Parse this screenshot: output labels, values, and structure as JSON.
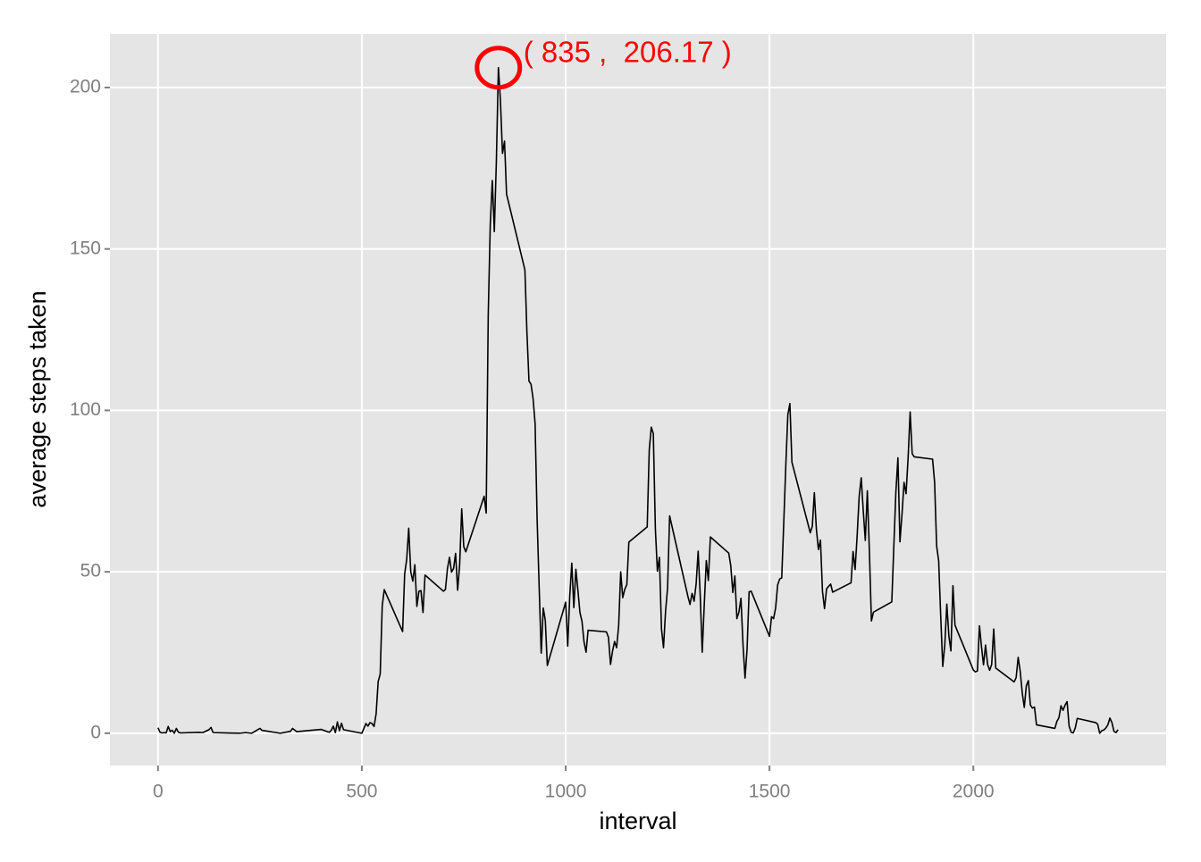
{
  "chart_data": {
    "type": "line",
    "x_label": "interval",
    "y_label": "average steps taken",
    "x": [
      0,
      5,
      10,
      15,
      20,
      25,
      30,
      35,
      40,
      45,
      50,
      55,
      100,
      110,
      125,
      130,
      135,
      200,
      215,
      230,
      250,
      255,
      300,
      325,
      330,
      340,
      400,
      415,
      420,
      425,
      430,
      435,
      440,
      445,
      450,
      455,
      500,
      505,
      510,
      515,
      520,
      525,
      530,
      535,
      540,
      545,
      550,
      555,
      600,
      605,
      610,
      615,
      620,
      625,
      630,
      635,
      640,
      645,
      650,
      655,
      700,
      705,
      710,
      715,
      720,
      725,
      730,
      735,
      740,
      745,
      750,
      755,
      800,
      805,
      810,
      815,
      820,
      825,
      830,
      835,
      840,
      845,
      850,
      855,
      900,
      905,
      910,
      915,
      920,
      925,
      930,
      935,
      940,
      945,
      950,
      955,
      1000,
      1005,
      1010,
      1015,
      1020,
      1025,
      1030,
      1035,
      1040,
      1045,
      1050,
      1055,
      1100,
      1105,
      1110,
      1115,
      1120,
      1125,
      1130,
      1135,
      1140,
      1145,
      1150,
      1155,
      1200,
      1205,
      1210,
      1215,
      1220,
      1225,
      1230,
      1235,
      1240,
      1245,
      1250,
      1255,
      1300,
      1305,
      1310,
      1315,
      1320,
      1325,
      1330,
      1335,
      1340,
      1345,
      1350,
      1355,
      1400,
      1405,
      1410,
      1415,
      1420,
      1425,
      1430,
      1435,
      1440,
      1445,
      1450,
      1455,
      1500,
      1505,
      1510,
      1515,
      1520,
      1525,
      1530,
      1535,
      1540,
      1545,
      1550,
      1555,
      1600,
      1605,
      1610,
      1615,
      1620,
      1625,
      1630,
      1635,
      1640,
      1645,
      1650,
      1655,
      1700,
      1705,
      1710,
      1715,
      1720,
      1725,
      1730,
      1735,
      1740,
      1745,
      1750,
      1755,
      1800,
      1805,
      1810,
      1815,
      1820,
      1825,
      1830,
      1835,
      1840,
      1845,
      1850,
      1855,
      1900,
      1905,
      1910,
      1915,
      1920,
      1925,
      1930,
      1935,
      1940,
      1945,
      1950,
      1955,
      2000,
      2005,
      2010,
      2015,
      2020,
      2025,
      2030,
      2035,
      2040,
      2045,
      2050,
      2055,
      2100,
      2105,
      2110,
      2115,
      2120,
      2125,
      2130,
      2135,
      2140,
      2145,
      2150,
      2155,
      2200,
      2205,
      2210,
      2215,
      2220,
      2225,
      2230,
      2235,
      2240,
      2245,
      2250,
      2255,
      2300,
      2305,
      2310,
      2315,
      2320,
      2325,
      2330,
      2335,
      2340,
      2345,
      2350,
      2355
    ],
    "series": [
      {
        "color": "#000000",
        "values": [
          1.7,
          0.3,
          0.1,
          0.2,
          0.1,
          2.1,
          0.5,
          0.9,
          0,
          1.5,
          0.3,
          0.1,
          0.3,
          0.2,
          1.1,
          1.8,
          0.2,
          0,
          0.2,
          0,
          1.5,
          0.9,
          0,
          0.6,
          1.5,
          0.5,
          1.2,
          0.5,
          0.3,
          0.9,
          2.2,
          0.2,
          3.5,
          0.8,
          3.1,
          1.1,
          0,
          1.5,
          3,
          2.2,
          3.3,
          3,
          2.1,
          6,
          16,
          18.3,
          39.5,
          44.5,
          31.5,
          49.3,
          53.8,
          63.5,
          50,
          47.1,
          52.2,
          39.3,
          44,
          44.2,
          37.4,
          49,
          44,
          44.5,
          51,
          54.5,
          49.9,
          51,
          55.7,
          44.3,
          52.3,
          69.5,
          57.8,
          56.2,
          73.4,
          68.2,
          129.4,
          157.5,
          171.2,
          155.4,
          177.3,
          206.17,
          195.9,
          179.6,
          183.4,
          167,
          143.5,
          124,
          109.1,
          108.1,
          103.7,
          95.96,
          66.2,
          45.2,
          24.8,
          38.8,
          35,
          21,
          40.6,
          26.98,
          42.4,
          52.7,
          38.9,
          50.8,
          44.3,
          37.4,
          34.7,
          28.3,
          25.1,
          31.9,
          31.4,
          29.7,
          21.3,
          25.5,
          28.4,
          26.5,
          33.4,
          50,
          42,
          44.6,
          46,
          59.2,
          63.9,
          87.7,
          94.8,
          92.8,
          63.4,
          50.2,
          54.5,
          32.4,
          26.5,
          37.7,
          45,
          67.3,
          42.3,
          39.9,
          43.3,
          40.9,
          46.2,
          56.4,
          42.8,
          25.1,
          39.9,
          53.5,
          47.3,
          60.8,
          55.8,
          51.9,
          43.6,
          48.7,
          35.5,
          37.5,
          41.8,
          27.5,
          17.1,
          26.1,
          43.8,
          44,
          30,
          36.1,
          35.5,
          38.8,
          45.96,
          47.8,
          48.1,
          65.3,
          82.9,
          98.7,
          102.1,
          83.96,
          62.1,
          64.1,
          74.5,
          63.2,
          56.9,
          59.8,
          43.9,
          38.6,
          44.7,
          45.5,
          46.2,
          43.7,
          46.6,
          56.3,
          50.7,
          61.2,
          73.4,
          79.1,
          68.9,
          59.7,
          75.1,
          56.5,
          34.8,
          37.5,
          40.7,
          58,
          74.7,
          85.3,
          59.3,
          67.8,
          77.7,
          74.2,
          85.3,
          99.5,
          86.6,
          85.6,
          84.9,
          77.8,
          58,
          53.4,
          36.3,
          20.7,
          27.4,
          40,
          30.2,
          25.5,
          45.7,
          33.5,
          19.6,
          19,
          19.3,
          33.3,
          26.8,
          21.2,
          27.3,
          21.3,
          19.5,
          21.3,
          32.3,
          20.2,
          15.9,
          17.2,
          23.5,
          19.2,
          12.5,
          8,
          14.7,
          16.3,
          8.7,
          7.8,
          8.1,
          2.6,
          1.5,
          3.7,
          4.8,
          8.5,
          7.1,
          8.7,
          9.8,
          2.2,
          0.3,
          0.1,
          1.6,
          4.6,
          3.3,
          2.8,
          0,
          0.8,
          1,
          1.6,
          2.6,
          4.7,
          3.3,
          0.6,
          0.2,
          1.1
        ]
      }
    ],
    "xlim": [
      -118,
      2473
    ],
    "xticks": [
      0,
      500,
      1000,
      1500,
      2000
    ],
    "ylim": [
      -10,
      216.6
    ],
    "yticks": [
      0,
      50,
      100,
      150,
      200
    ],
    "grid": true,
    "annotation": {
      "text": "( 835 ,  206.17 )",
      "x": 835,
      "y": 206.17,
      "color": "#ff0000"
    }
  }
}
